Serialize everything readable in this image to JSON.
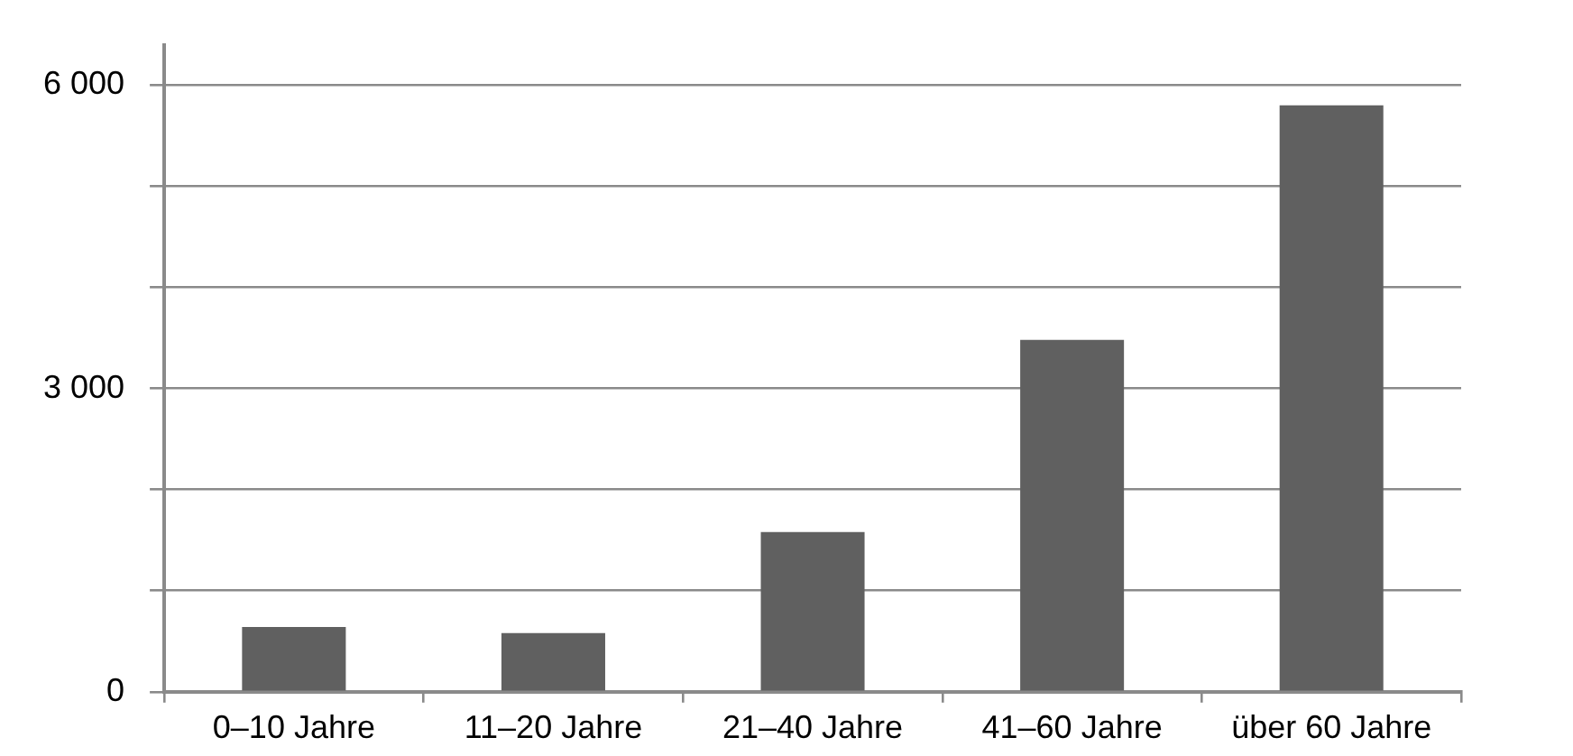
{
  "chart_data": {
    "type": "bar",
    "categories": [
      "0–10 Jahre",
      "11–20 Jahre",
      "21–40 Jahre",
      "41–60 Jahre",
      "über 60 Jahre"
    ],
    "values": [
      640,
      580,
      1580,
      3480,
      5800
    ],
    "color": "#606060",
    "ylim": [
      0,
      6400
    ],
    "yticks": [
      {
        "value": 0,
        "label": "0"
      },
      {
        "value": 1000,
        "label": null
      },
      {
        "value": 2000,
        "label": null
      },
      {
        "value": 3000,
        "label": "3 000"
      },
      {
        "value": 4000,
        "label": null
      },
      {
        "value": 5000,
        "label": null
      },
      {
        "value": 6000,
        "label": "6 000"
      }
    ],
    "grid": "y",
    "legend": false
  }
}
